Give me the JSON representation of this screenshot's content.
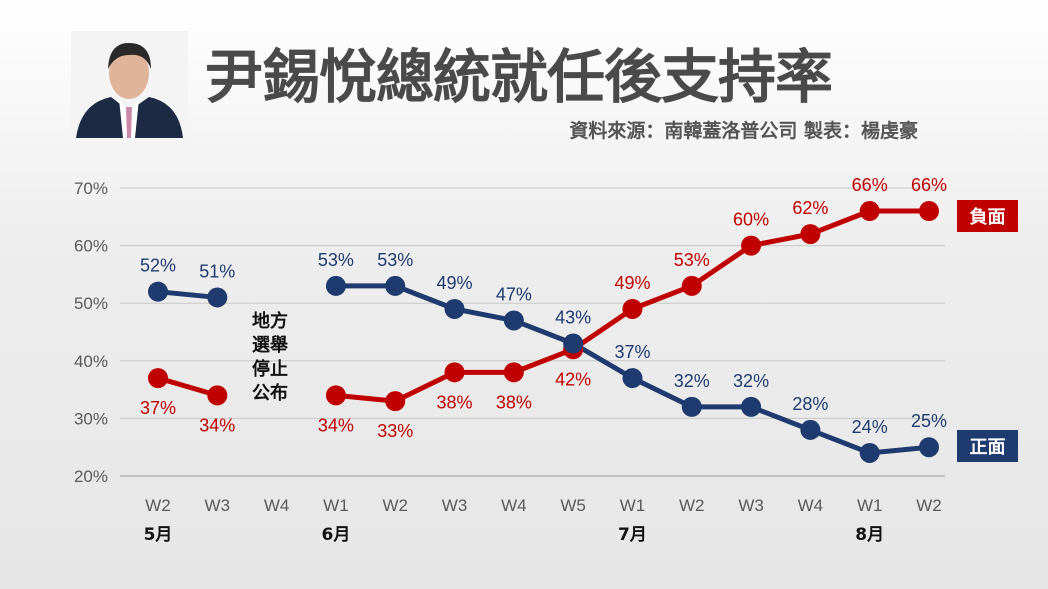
{
  "header": {
    "title": "尹錫悅總統就任後支持率",
    "source": "資料來源：南韓蓋洛普公司  製表：楊虔豪"
  },
  "photo": {
    "icon": "portrait-photo"
  },
  "annotation": [
    "地方",
    "選舉",
    "停止",
    "公布"
  ],
  "chart_data": {
    "type": "line",
    "categories": [
      "W2",
      "W3",
      "W4",
      "W1",
      "W2",
      "W3",
      "W4",
      "W5",
      "W1",
      "W2",
      "W3",
      "W4",
      "W1",
      "W2"
    ],
    "month_labels": [
      {
        "index": 0,
        "label": "5月"
      },
      {
        "index": 3,
        "label": "6月"
      },
      {
        "index": 8,
        "label": "7月"
      },
      {
        "index": 12,
        "label": "8月"
      }
    ],
    "ylim": [
      20,
      70
    ],
    "yticks": [
      "20%",
      "30%",
      "40%",
      "50%",
      "60%",
      "70%"
    ],
    "grid": true,
    "legend_placement": "right",
    "series": [
      {
        "name": "負面",
        "color": "#c00000",
        "values": [
          37,
          34,
          null,
          34,
          33,
          38,
          38,
          42,
          49,
          53,
          60,
          62,
          66,
          66
        ]
      },
      {
        "name": "正面",
        "color": "#1f3a6e",
        "values": [
          52,
          51,
          null,
          53,
          53,
          49,
          47,
          43,
          37,
          32,
          32,
          28,
          24,
          25
        ]
      }
    ]
  }
}
